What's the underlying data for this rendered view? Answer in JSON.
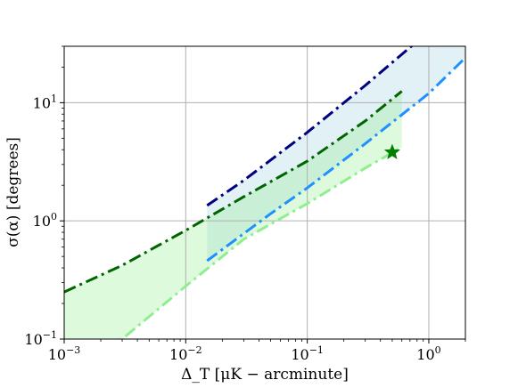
{
  "chart_data": {
    "type": "line",
    "xscale": "log",
    "yscale": "log",
    "xlim": [
      0.001,
      2
    ],
    "ylim": [
      0.1,
      30
    ],
    "grid": true,
    "xlabel": "Δ_T [μK − arcminute]",
    "ylabel": "σ(α) [degrees]",
    "x_ticks": [
      {
        "value": 0.001,
        "base": "10",
        "exp": "−3"
      },
      {
        "value": 0.01,
        "base": "10",
        "exp": "−2"
      },
      {
        "value": 0.1,
        "base": "10",
        "exp": "−1"
      },
      {
        "value": 1,
        "base": "10",
        "exp": "0"
      }
    ],
    "y_ticks": [
      {
        "value": 0.1,
        "base": "10",
        "exp": "−1"
      },
      {
        "value": 1,
        "base": "10",
        "exp": "0"
      },
      {
        "value": 10,
        "base": "10",
        "exp": "1"
      }
    ],
    "series": [
      {
        "color": "#000080",
        "style": "dashdot",
        "x": [
          0.015,
          0.03,
          0.1,
          0.3,
          0.8
        ],
        "y": [
          1.35,
          2.2,
          5.6,
          14.0,
          33.0
        ]
      },
      {
        "color": "#1e90ff",
        "style": "dashdot",
        "x": [
          0.015,
          0.05,
          0.1,
          0.3,
          1.0,
          2.0
        ],
        "y": [
          0.46,
          1.15,
          1.9,
          4.5,
          12.0,
          24.0
        ]
      },
      {
        "color": "#006400",
        "style": "dashdot",
        "x": [
          0.001,
          0.003,
          0.01,
          0.03,
          0.1,
          0.3,
          0.6
        ],
        "y": [
          0.25,
          0.42,
          0.83,
          1.6,
          3.2,
          7.0,
          12.5
        ]
      },
      {
        "color": "#90ee90",
        "style": "dashdot",
        "x": [
          0.001,
          0.003,
          0.01,
          0.03,
          0.1,
          0.3,
          0.6
        ],
        "y": [
          0.05,
          0.1,
          0.28,
          0.7,
          1.4,
          2.8,
          4.2
        ]
      }
    ],
    "bands": [
      {
        "color": "#add8e6",
        "opacity": 0.35,
        "upper": {
          "x": [
            0.015,
            0.03,
            0.1,
            0.3,
            0.8,
            2.0
          ],
          "y": [
            1.35,
            2.2,
            5.6,
            14.0,
            33.0,
            33.0
          ]
        },
        "lower": {
          "x": [
            0.015,
            0.05,
            0.1,
            0.3,
            1.0,
            2.0
          ],
          "y": [
            0.46,
            1.15,
            1.9,
            4.5,
            12.0,
            24.0
          ]
        }
      },
      {
        "color": "#90ee90",
        "opacity": 0.3,
        "upper": {
          "x": [
            0.001,
            0.003,
            0.01,
            0.03,
            0.1,
            0.3,
            0.6
          ],
          "y": [
            0.25,
            0.42,
            0.83,
            1.6,
            3.2,
            7.0,
            12.5
          ]
        },
        "lower": {
          "x": [
            0.001,
            0.003,
            0.01,
            0.03,
            0.1,
            0.3,
            0.6
          ],
          "y": [
            0.05,
            0.1,
            0.28,
            0.7,
            1.4,
            2.8,
            4.2
          ]
        }
      }
    ],
    "markers": [
      {
        "shape": "star",
        "color": "#008000",
        "x": 0.5,
        "y": 3.8
      }
    ]
  }
}
